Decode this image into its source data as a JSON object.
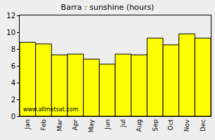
{
  "chart_data": {
    "type": "bar",
    "title": "Barra : sunshine (hours)",
    "categories": [
      "Jan",
      "Feb",
      "Mar",
      "Apr",
      "May",
      "Jun",
      "Jul",
      "Aug",
      "Sep",
      "Oct",
      "Nov",
      "Dec"
    ],
    "values": [
      8.8,
      8.6,
      7.3,
      7.4,
      6.8,
      6.2,
      7.4,
      7.3,
      9.3,
      8.5,
      9.8,
      9.3
    ],
    "color": "#ffff00",
    "ylim": [
      0,
      12
    ],
    "yticks": [
      0,
      2,
      4,
      6,
      8,
      10,
      12
    ],
    "grid": false,
    "annotations": [
      "www.allmetsat.com"
    ]
  }
}
